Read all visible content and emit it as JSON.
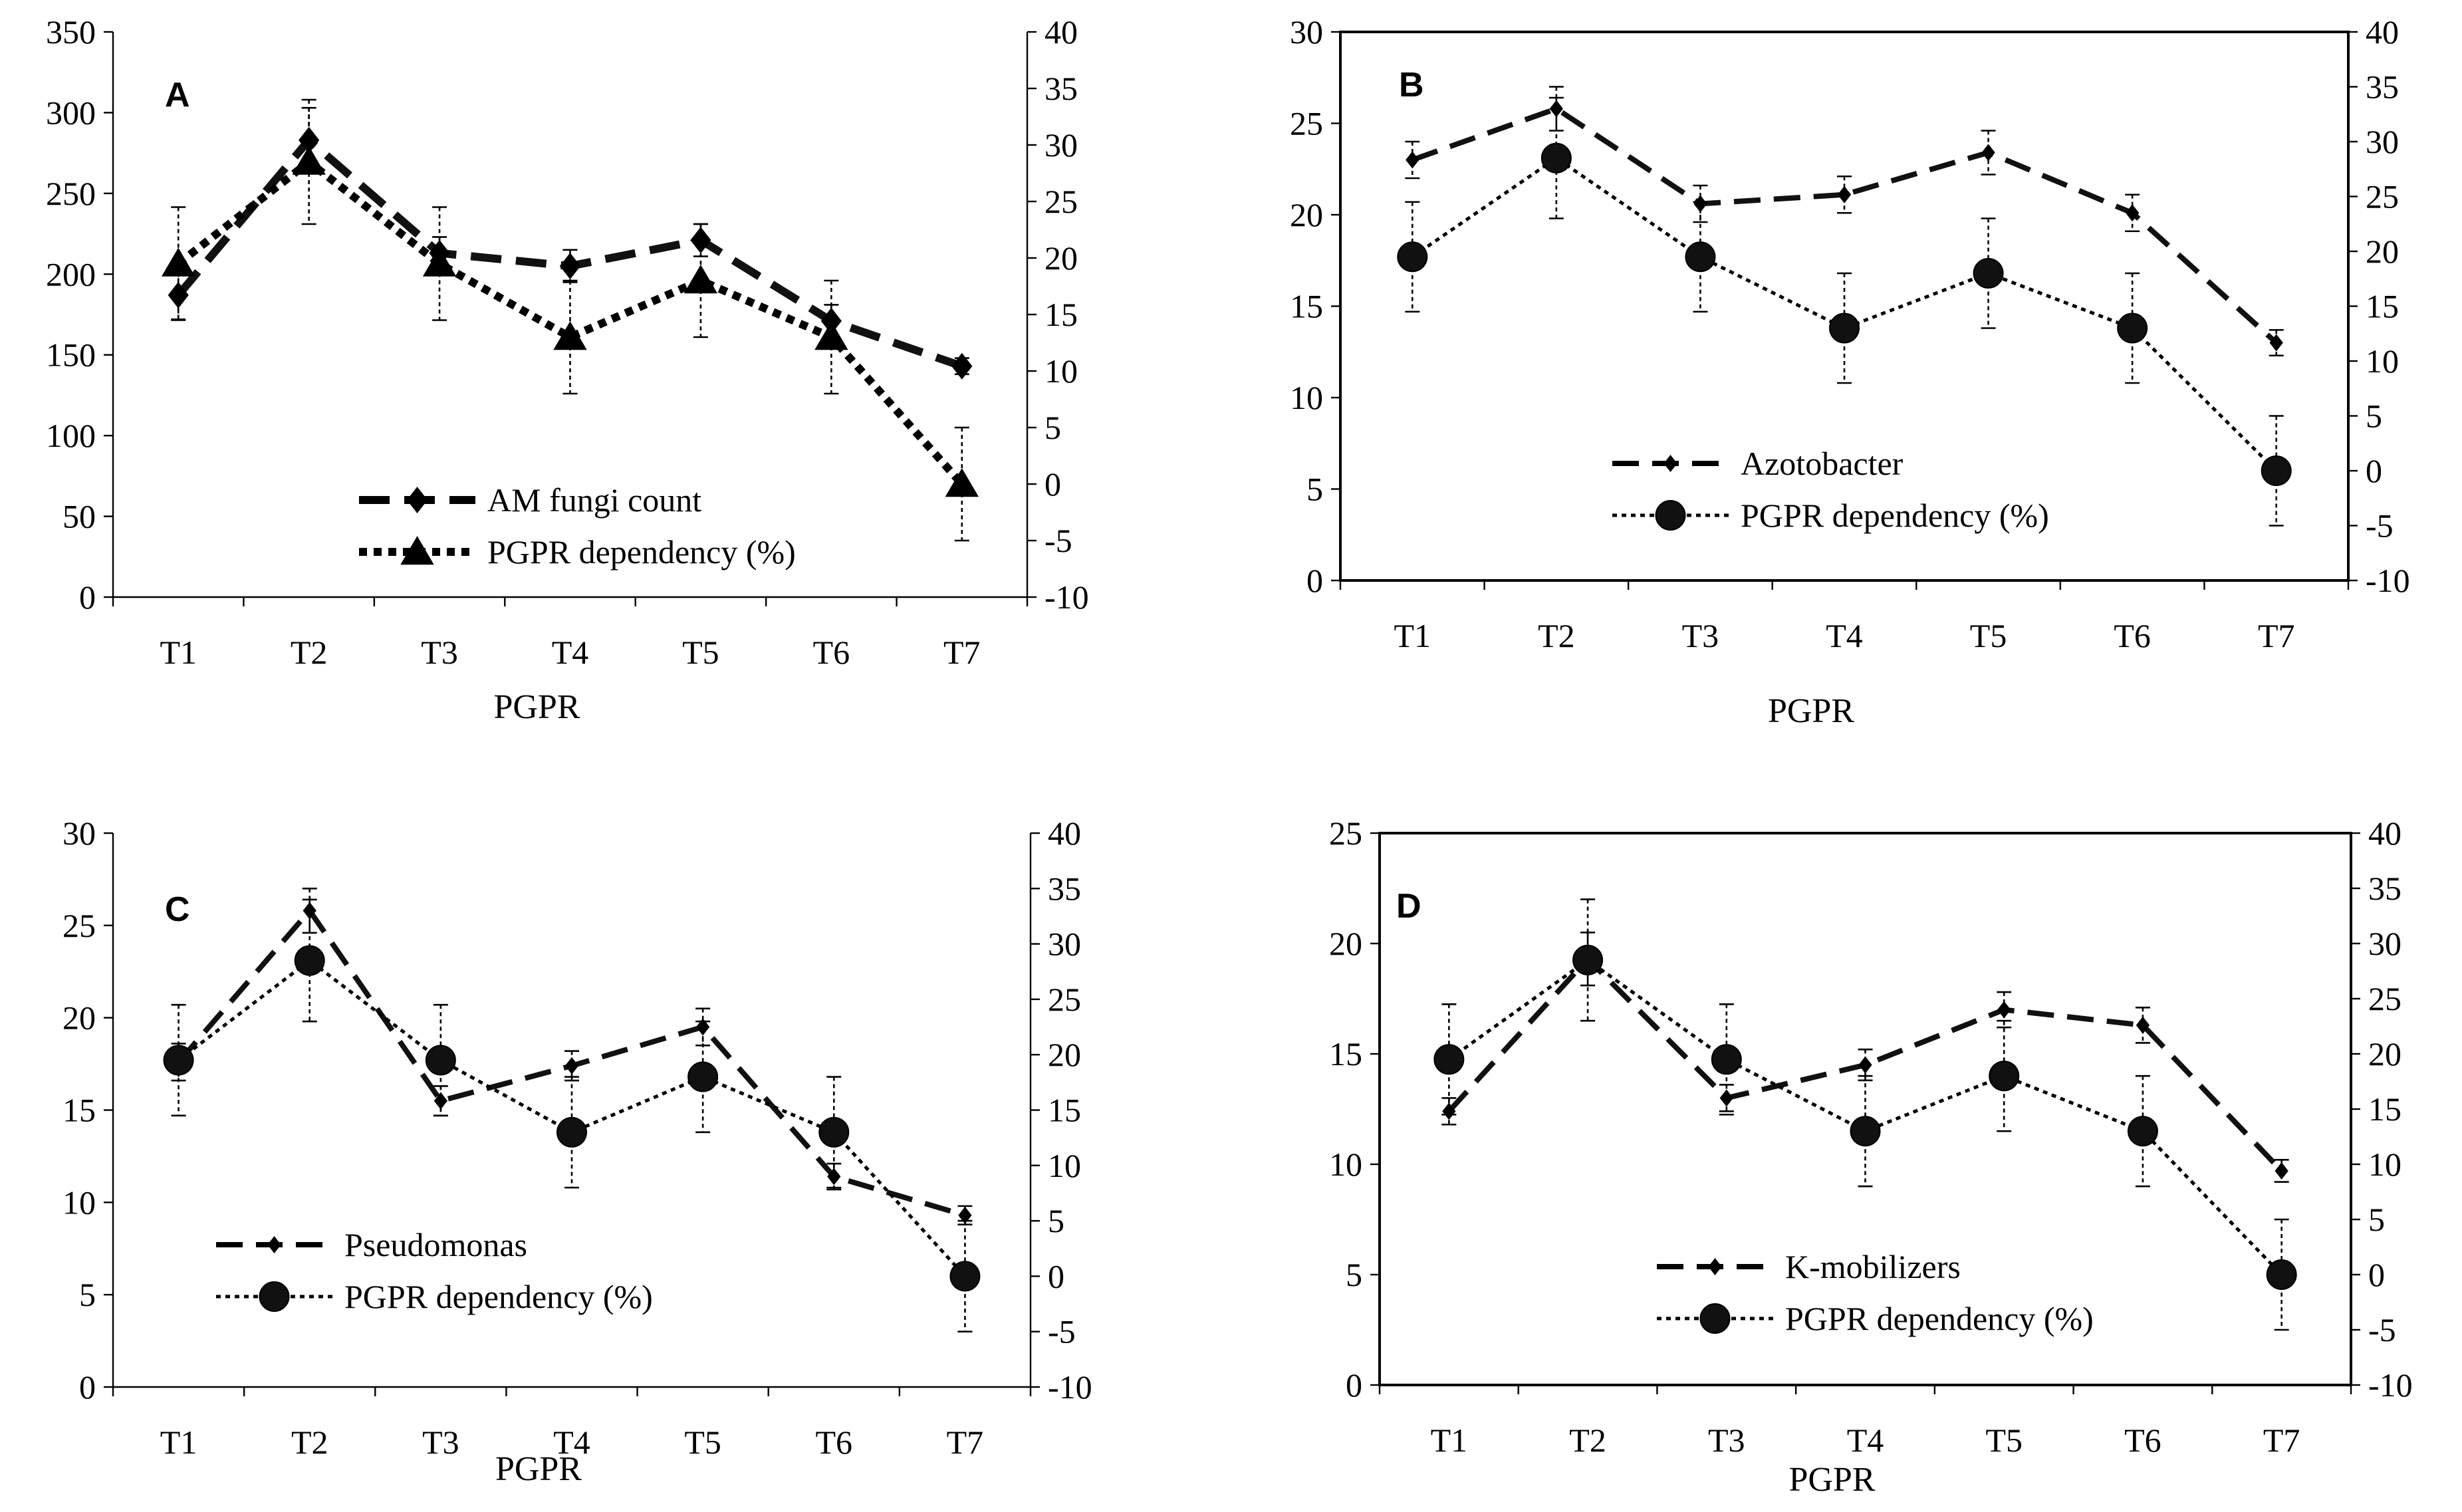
{
  "chart_data": [
    {
      "type": "line",
      "panel_label": "A",
      "xlabel": "PGPR",
      "categories": [
        "T1",
        "T2",
        "T3",
        "T4",
        "T5",
        "T6",
        "T7"
      ],
      "y_left": {
        "range": [
          0,
          350
        ],
        "step": 50
      },
      "y_right": {
        "range": [
          -10,
          40
        ],
        "step": 5
      },
      "series": [
        {
          "name": "AM fungi count",
          "axis": "left",
          "style": "dashed",
          "marker": "diamond",
          "values": [
            187,
            283,
            213,
            205,
            221,
            171,
            143
          ],
          "errors": [
            15,
            20,
            10,
            10,
            10,
            10,
            5
          ]
        },
        {
          "name": "PGPR dependency (%)",
          "axis": "right",
          "style": "dotted",
          "marker": "triangle",
          "values": [
            19.5,
            28.5,
            19.5,
            13,
            18,
            13,
            0
          ],
          "errors": [
            5,
            5.5,
            5,
            5,
            5,
            5,
            5
          ]
        }
      ],
      "legend": "bottom-center"
    },
    {
      "type": "line",
      "panel_label": "B",
      "xlabel": "PGPR",
      "categories": [
        "T1",
        "T2",
        "T3",
        "T4",
        "T5",
        "T6",
        "T7"
      ],
      "y_left": {
        "range": [
          0,
          30
        ],
        "step": 5
      },
      "y_right": {
        "range": [
          -10,
          40
        ],
        "step": 5
      },
      "series": [
        {
          "name": "Azotobacter",
          "axis": "left",
          "style": "dashed",
          "marker": "diamond",
          "values": [
            23,
            25.8,
            20.6,
            21.1,
            23.4,
            20.1,
            13
          ],
          "errors": [
            1,
            1.2,
            1,
            1,
            1.2,
            1,
            0.7
          ]
        },
        {
          "name": "PGPR dependency (%)",
          "axis": "right",
          "style": "dotted",
          "marker": "circle",
          "values": [
            19.5,
            28.5,
            19.5,
            13,
            18,
            13,
            0
          ],
          "errors": [
            5,
            5.5,
            5,
            5,
            5,
            5,
            5
          ]
        }
      ],
      "legend": "center"
    },
    {
      "type": "line",
      "panel_label": "C",
      "xlabel": "PGPR",
      "categories": [
        "T1",
        "T2",
        "T3",
        "T4",
        "T5",
        "T6",
        "T7"
      ],
      "y_left": {
        "range": [
          0,
          30
        ],
        "step": 5
      },
      "y_right": {
        "range": [
          -10,
          40
        ],
        "step": 5
      },
      "series": [
        {
          "name": "Pseudomonas",
          "axis": "left",
          "style": "dashed",
          "marker": "diamond",
          "values": [
            17.6,
            25.8,
            15.5,
            17.4,
            19.5,
            11.4,
            9.3
          ],
          "errors": [
            1,
            1.2,
            0.8,
            0.8,
            1,
            0.7,
            0.5
          ]
        },
        {
          "name": "PGPR dependency (%)",
          "axis": "right",
          "style": "dotted",
          "marker": "circle",
          "values": [
            19.5,
            28.5,
            19.5,
            13,
            18,
            13,
            0
          ],
          "errors": [
            5,
            5.5,
            5,
            5,
            5,
            5,
            5
          ]
        }
      ],
      "legend": "bottom-left"
    },
    {
      "type": "line",
      "panel_label": "D",
      "xlabel": "PGPR",
      "categories": [
        "T1",
        "T2",
        "T3",
        "T4",
        "T5",
        "T6",
        "T7"
      ],
      "y_left": {
        "range": [
          0,
          25
        ],
        "step": 5
      },
      "y_right": {
        "range": [
          -10,
          40
        ],
        "step": 5
      },
      "series": [
        {
          "name": "K-mobilizers",
          "axis": "left",
          "style": "dashed",
          "marker": "diamond",
          "values": [
            12.4,
            19.3,
            13,
            14.5,
            17,
            16.3,
            9.7
          ],
          "errors": [
            0.6,
            1.2,
            0.6,
            0.7,
            0.8,
            0.8,
            0.5
          ]
        },
        {
          "name": "PGPR dependency (%)",
          "axis": "right",
          "style": "dotted",
          "marker": "circle",
          "values": [
            19.5,
            28.5,
            19.5,
            13,
            18,
            13,
            0
          ],
          "errors": [
            5,
            5.5,
            5,
            5,
            5,
            5,
            5
          ]
        }
      ],
      "legend": "bottom-center"
    }
  ]
}
